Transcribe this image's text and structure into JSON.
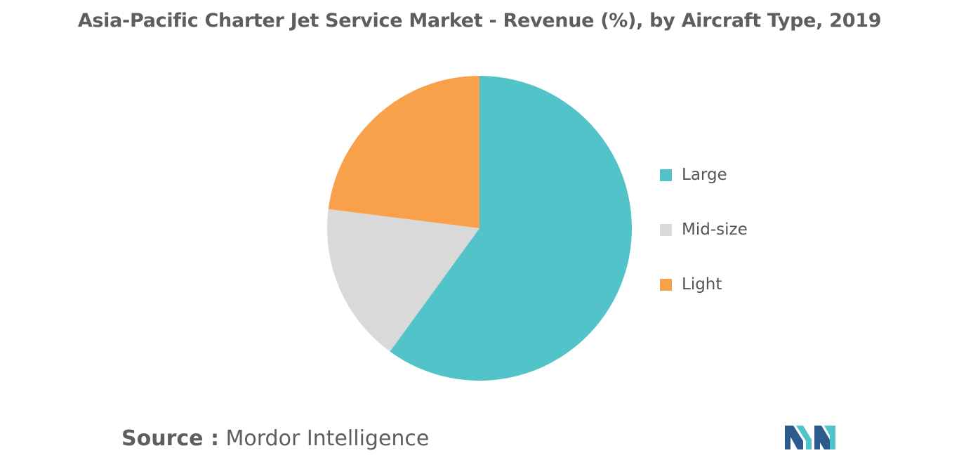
{
  "title": "Asia-Pacific Charter Jet Service Market - Revenue (%), by Aircraft Type, 2019",
  "chart_data": {
    "type": "pie",
    "title": "Asia-Pacific Charter Jet Service Market - Revenue (%), by Aircraft Type, 2019",
    "start_angle_deg": 0,
    "direction": "clockwise",
    "legend_position": "right",
    "slices": [
      {
        "label": "Large",
        "value": 60,
        "color": "#52c3c9"
      },
      {
        "label": "Mid-size",
        "value": 17,
        "color": "#d9d9d9"
      },
      {
        "label": "Light",
        "value": 23,
        "color": "#f9a04a"
      }
    ]
  },
  "source": {
    "prefix": "Source :",
    "name": "Mordor Intelligence"
  },
  "logo": {
    "colors": [
      "#2d5a8c",
      "#52c3c9"
    ]
  }
}
